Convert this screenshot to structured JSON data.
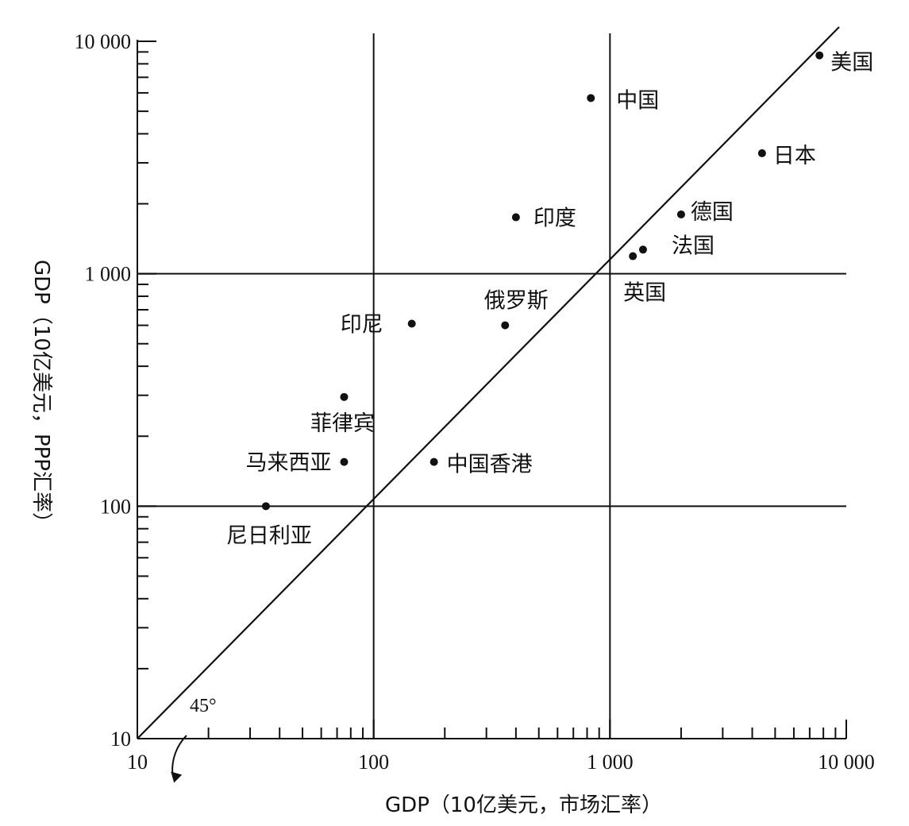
{
  "chart_data": {
    "type": "scatter",
    "title": "",
    "xlabel": "GDP（10亿美元，市场汇率）",
    "ylabel": "GDP（10亿美元，PPP汇率）",
    "x_scale": "log",
    "y_scale": "log",
    "xlim": [
      10,
      10000
    ],
    "ylim": [
      10,
      10000
    ],
    "x_ticks": [
      {
        "value": 10,
        "label": "10"
      },
      {
        "value": 100,
        "label": "100"
      },
      {
        "value": 1000,
        "label": "1 000"
      },
      {
        "value": 10000,
        "label": "10 000"
      }
    ],
    "y_ticks": [
      {
        "value": 10,
        "label": "10"
      },
      {
        "value": 100,
        "label": "100"
      },
      {
        "value": 1000,
        "label": "1 000"
      },
      {
        "value": 10000,
        "label": "10 000"
      }
    ],
    "reference_lines": [
      100,
      1000
    ],
    "diagonal_label": "45°",
    "points": [
      {
        "name": "美国",
        "x": 7700,
        "y": 8700
      },
      {
        "name": "中国",
        "x": 830,
        "y": 5700
      },
      {
        "name": "日本",
        "x": 4400,
        "y": 3300
      },
      {
        "name": "德国",
        "x": 2000,
        "y": 1800
      },
      {
        "name": "印度",
        "x": 400,
        "y": 1750
      },
      {
        "name": "法国",
        "x": 1380,
        "y": 1270
      },
      {
        "name": "英国",
        "x": 1250,
        "y": 1190
      },
      {
        "name": "俄罗斯",
        "x": 360,
        "y": 600
      },
      {
        "name": "印尼",
        "x": 145,
        "y": 610
      },
      {
        "name": "菲律宾",
        "x": 75,
        "y": 295
      },
      {
        "name": "马来西亚",
        "x": 75,
        "y": 155
      },
      {
        "name": "中国香港",
        "x": 180,
        "y": 155
      },
      {
        "name": "尼日利亚",
        "x": 35,
        "y": 100
      }
    ]
  }
}
